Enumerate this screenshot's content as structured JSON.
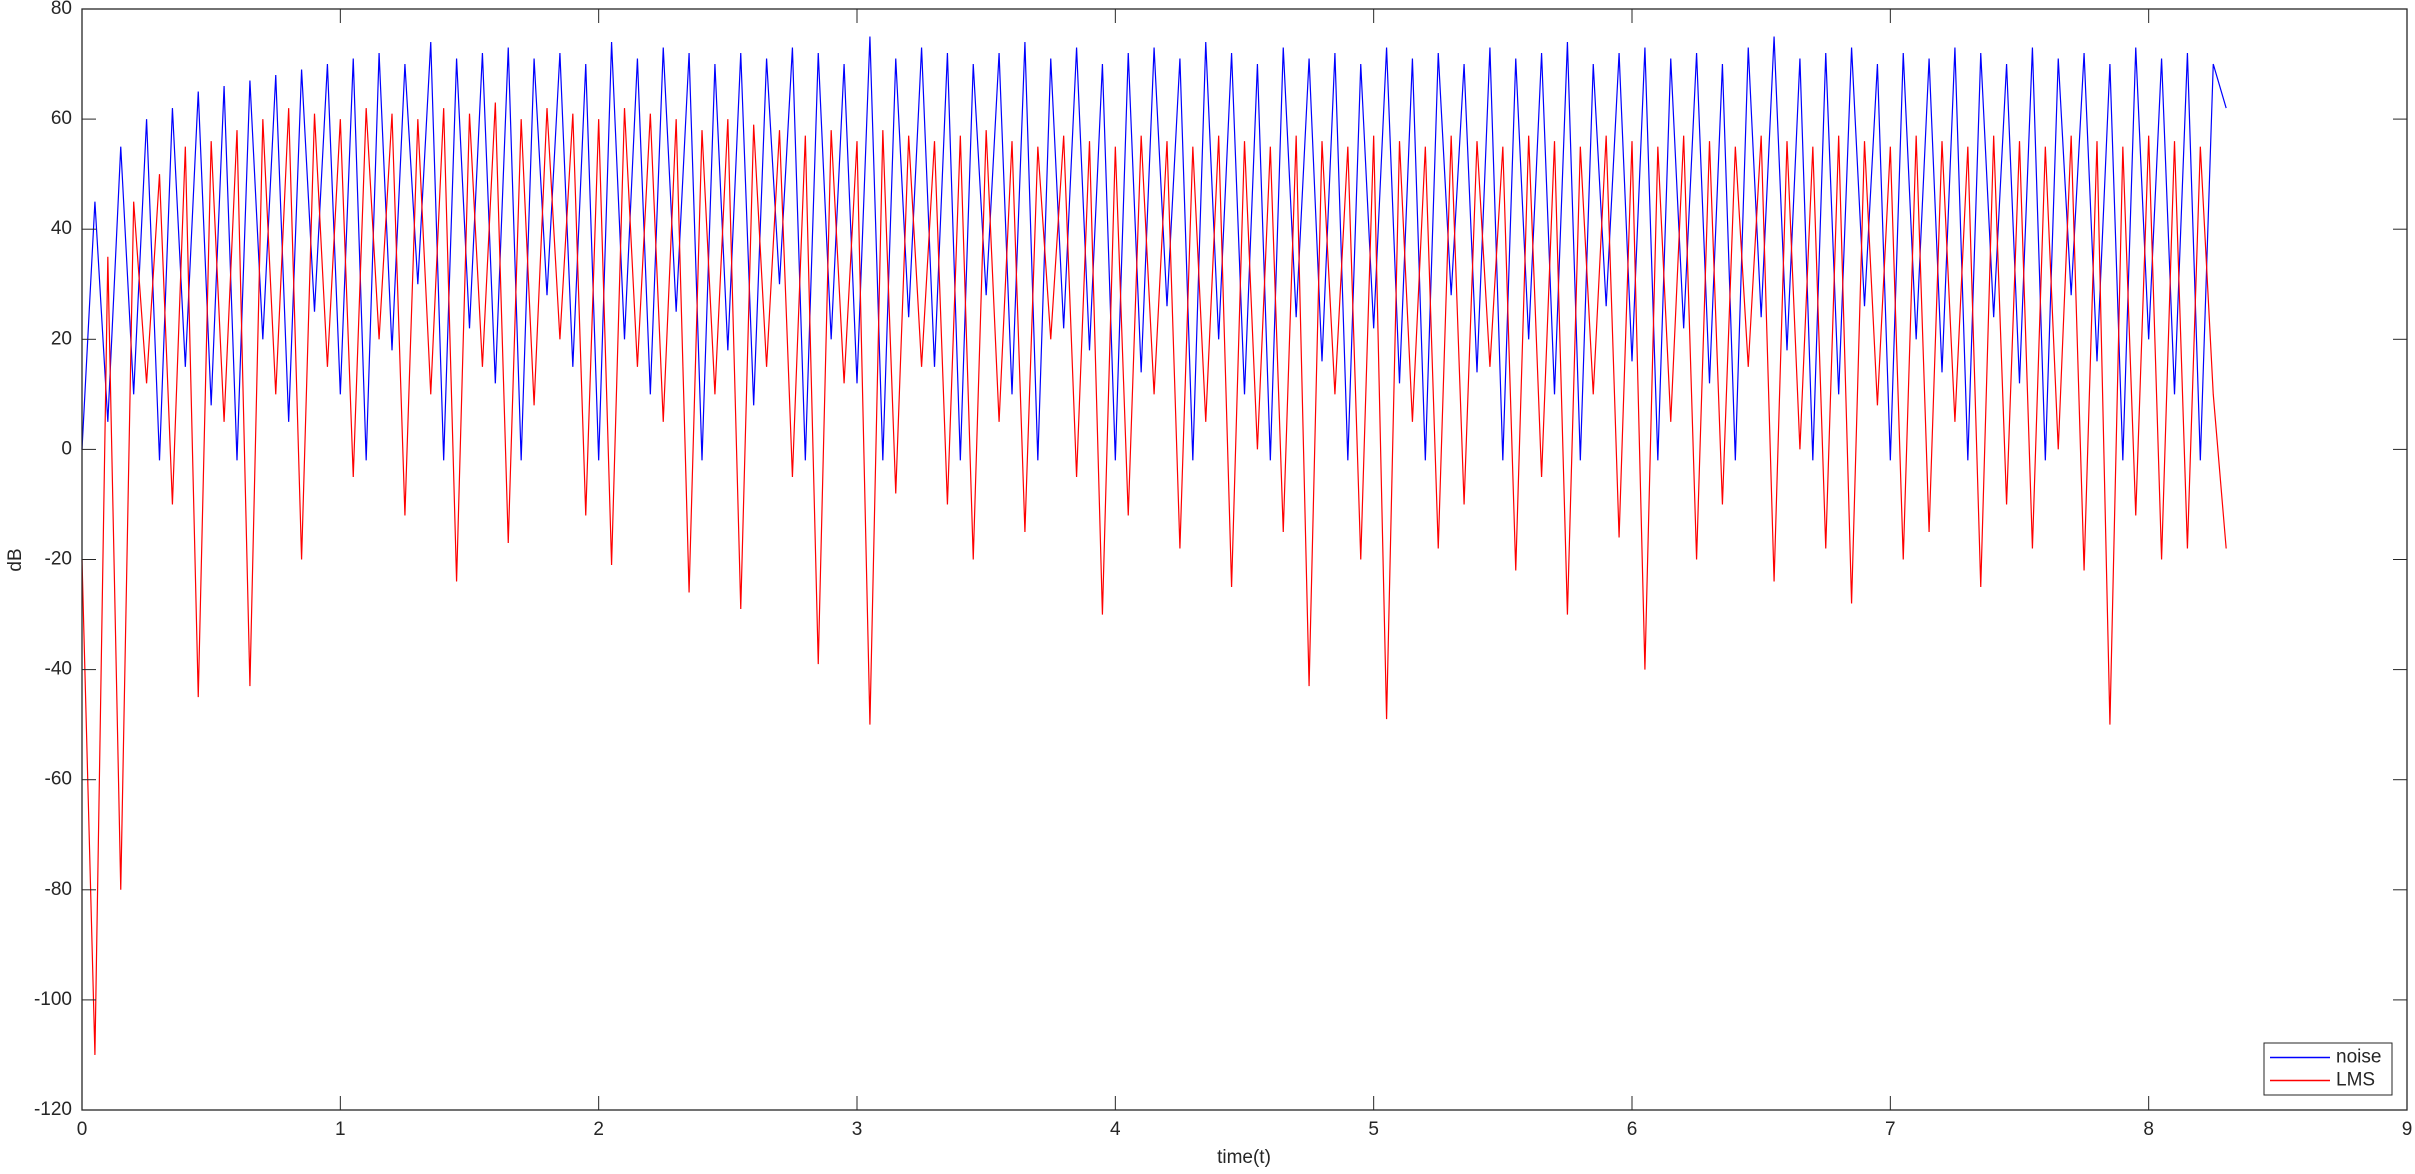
{
  "chart_data": {
    "type": "line",
    "xlabel": "time(t)",
    "ylabel": "dB",
    "x": [
      0,
      0.05,
      0.1,
      0.15,
      0.2,
      0.25,
      0.3,
      0.35,
      0.4,
      0.45,
      0.5,
      0.55,
      0.6,
      0.65,
      0.7,
      0.75,
      0.8,
      0.85,
      0.9,
      0.95,
      1,
      1.05,
      1.1,
      1.15,
      1.2,
      1.25,
      1.3,
      1.35,
      1.4,
      1.45,
      1.5,
      1.55,
      1.6,
      1.65,
      1.7,
      1.75,
      1.8,
      1.85,
      1.9,
      1.95,
      2,
      2.05,
      2.1,
      2.15,
      2.2,
      2.25,
      2.3,
      2.35,
      2.4,
      2.45,
      2.5,
      2.55,
      2.6,
      2.65,
      2.7,
      2.75,
      2.8,
      2.85,
      2.9,
      2.95,
      3,
      3.05,
      3.1,
      3.15,
      3.2,
      3.25,
      3.3,
      3.35,
      3.4,
      3.45,
      3.5,
      3.55,
      3.6,
      3.65,
      3.7,
      3.75,
      3.8,
      3.85,
      3.9,
      3.95,
      4,
      4.05,
      4.1,
      4.15,
      4.2,
      4.25,
      4.3,
      4.35,
      4.4,
      4.45,
      4.5,
      4.55,
      4.6,
      4.65,
      4.7,
      4.75,
      4.8,
      4.85,
      4.9,
      4.95,
      5,
      5.05,
      5.1,
      5.15,
      5.2,
      5.25,
      5.3,
      5.35,
      5.4,
      5.45,
      5.5,
      5.55,
      5.6,
      5.65,
      5.7,
      5.75,
      5.8,
      5.85,
      5.9,
      5.95,
      6,
      6.05,
      6.1,
      6.15,
      6.2,
      6.25,
      6.3,
      6.35,
      6.4,
      6.45,
      6.5,
      6.55,
      6.6,
      6.65,
      6.7,
      6.75,
      6.8,
      6.85,
      6.9,
      6.95,
      7,
      7.05,
      7.1,
      7.15,
      7.2,
      7.25,
      7.3,
      7.35,
      7.4,
      7.45,
      7.5,
      7.55,
      7.6,
      7.65,
      7.7,
      7.75,
      7.8,
      7.85,
      7.9,
      7.95,
      8,
      8.05,
      8.1,
      8.15,
      8.2,
      8.25,
      8.3
    ],
    "series": [
      {
        "name": "noise",
        "color": "#0000ff",
        "values": [
          0,
          45,
          5,
          55,
          10,
          60,
          -2,
          62,
          15,
          65,
          8,
          66,
          -2,
          67,
          20,
          68,
          5,
          69,
          25,
          70,
          10,
          71,
          -2,
          72,
          18,
          70,
          30,
          74,
          -2,
          71,
          22,
          72,
          12,
          73,
          -2,
          71,
          28,
          72,
          15,
          70,
          -2,
          74,
          20,
          71,
          10,
          73,
          25,
          72,
          -2,
          70,
          18,
          72,
          8,
          71,
          30,
          73,
          -2,
          72,
          20,
          70,
          12,
          75,
          -2,
          71,
          24,
          73,
          15,
          72,
          -2,
          70,
          28,
          72,
          10,
          74,
          -2,
          71,
          22,
          73,
          18,
          70,
          -2,
          72,
          14,
          73,
          26,
          71,
          -2,
          74,
          20,
          72,
          10,
          70,
          -2,
          73,
          24,
          71,
          16,
          72,
          -2,
          70,
          22,
          73,
          12,
          71,
          -2,
          72,
          28,
          70,
          14,
          73,
          -2,
          71,
          20,
          72,
          10,
          74,
          -2,
          70,
          26,
          72,
          16,
          73,
          -2,
          71,
          22,
          72,
          12,
          70,
          -2,
          73,
          24,
          75,
          18,
          71,
          -2,
          72,
          10,
          73,
          26,
          70,
          -2,
          72,
          20,
          71,
          14,
          73,
          -2,
          72,
          24,
          70,
          12,
          73,
          -2,
          71,
          28,
          72,
          16,
          70,
          -2,
          73,
          20,
          71,
          10,
          72,
          -2,
          70,
          62
        ]
      },
      {
        "name": "LMS",
        "color": "#ff0000",
        "values": [
          -20,
          -110,
          35,
          -80,
          45,
          12,
          50,
          -10,
          55,
          -45,
          56,
          5,
          58,
          -43,
          60,
          10,
          62,
          -20,
          61,
          15,
          60,
          -5,
          62,
          20,
          61,
          -12,
          60,
          10,
          62,
          -24,
          61,
          15,
          63,
          -17,
          60,
          8,
          62,
          20,
          61,
          -12,
          60,
          -21,
          62,
          15,
          61,
          5,
          60,
          -26,
          58,
          10,
          60,
          -29,
          59,
          15,
          58,
          -5,
          57,
          -39,
          58,
          12,
          56,
          -50,
          58,
          -8,
          57,
          15,
          56,
          -10,
          57,
          -20,
          58,
          5,
          56,
          -15,
          55,
          20,
          57,
          -5,
          56,
          -30,
          55,
          -12,
          57,
          10,
          56,
          -18,
          55,
          5,
          57,
          -25,
          56,
          0,
          55,
          -15,
          57,
          -43,
          56,
          10,
          55,
          -20,
          57,
          -49,
          56,
          5,
          55,
          -18,
          57,
          -10,
          56,
          15,
          55,
          -22,
          57,
          -5,
          56,
          -30,
          55,
          10,
          57,
          -16,
          56,
          -40,
          55,
          5,
          57,
          -20,
          56,
          -10,
          55,
          15,
          57,
          -24,
          56,
          0,
          55,
          -18,
          57,
          -28,
          56,
          8,
          55,
          -20,
          57,
          -15,
          56,
          5,
          55,
          -25,
          57,
          -10,
          56,
          -18,
          55,
          0,
          57,
          -22,
          56,
          -50,
          55,
          -12,
          57,
          -20,
          56,
          -18,
          55,
          10,
          -18
        ]
      }
    ],
    "xlim": [
      0,
      9
    ],
    "xticks": [
      0,
      1,
      2,
      3,
      4,
      5,
      6,
      7,
      8,
      9
    ],
    "ylim": [
      -120,
      80
    ],
    "yticks": [
      -120,
      -100,
      -80,
      -60,
      -40,
      -20,
      0,
      20,
      40,
      60,
      80
    ],
    "legend": "lower right"
  }
}
